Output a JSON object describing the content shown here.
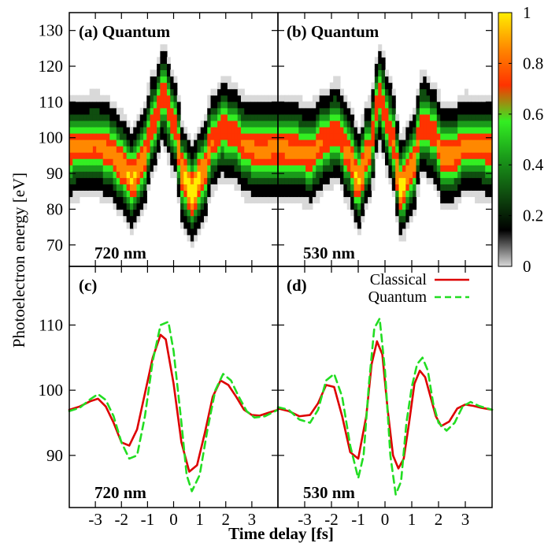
{
  "y_axis_label": "Photoelectron energy [eV]",
  "x_axis_label": "Time delay [fs]",
  "colorbar": {
    "ticks": [
      "1",
      "0.8",
      "0.6",
      "0.4",
      "0.2",
      "0"
    ],
    "tick_values": [
      1,
      0.8,
      0.6,
      0.4,
      0.2,
      0
    ],
    "stops": [
      "#d9d9d9",
      "#000000",
      "#0f4d0f",
      "#1a9a1a",
      "#33ee22",
      "#ff3300",
      "#ff8800",
      "#ffee00"
    ]
  },
  "chart_data": [
    {
      "type": "heatmap",
      "panel_label": "(a) Quantum",
      "wavelength_label": "720 nm",
      "ylim": [
        64,
        135
      ],
      "xlim": [
        -4,
        4
      ],
      "y_ticks": [
        "130",
        "120",
        "110",
        "100",
        "90",
        "80",
        "70"
      ],
      "y_tick_values": [
        130,
        120,
        110,
        100,
        90,
        80,
        70
      ],
      "center_curve": [
        [
          -4,
          97.2
        ],
        [
          -3.5,
          97.6
        ],
        [
          -3,
          98.2
        ],
        [
          -2.5,
          96.5
        ],
        [
          -2,
          92.5
        ],
        [
          -1.6,
          88.5
        ],
        [
          -1.2,
          93
        ],
        [
          -0.8,
          104
        ],
        [
          -0.4,
          112
        ],
        [
          0,
          104
        ],
        [
          0.4,
          89
        ],
        [
          0.7,
          84.5
        ],
        [
          1.1,
          90
        ],
        [
          1.5,
          99
        ],
        [
          1.9,
          102.5
        ],
        [
          2.3,
          101
        ],
        [
          2.8,
          97.5
        ],
        [
          3.3,
          96.5
        ],
        [
          4,
          97
        ]
      ]
    },
    {
      "type": "heatmap",
      "panel_label": "(b) Quantum",
      "wavelength_label": "530 nm",
      "ylim": [
        64,
        135
      ],
      "xlim": [
        -4,
        4
      ],
      "center_curve": [
        [
          -4,
          97.2
        ],
        [
          -3.4,
          96.5
        ],
        [
          -2.8,
          95.5
        ],
        [
          -2.2,
          99.5
        ],
        [
          -1.8,
          102
        ],
        [
          -1.4,
          96
        ],
        [
          -1,
          88
        ],
        [
          -0.6,
          96
        ],
        [
          -0.2,
          111.5
        ],
        [
          0.2,
          102
        ],
        [
          0.6,
          86
        ],
        [
          1,
          92
        ],
        [
          1.4,
          104
        ],
        [
          1.8,
          101
        ],
        [
          2.2,
          95
        ],
        [
          2.6,
          95.5
        ],
        [
          3,
          98
        ],
        [
          3.5,
          97.5
        ],
        [
          4,
          97
        ]
      ]
    },
    {
      "type": "line",
      "panel_label": "(c)",
      "wavelength_label": "720 nm",
      "xlim": [
        -4,
        4
      ],
      "ylim": [
        82,
        119
      ],
      "y_ticks": [
        "110",
        "100",
        "90"
      ],
      "y_tick_values": [
        110,
        100,
        90
      ],
      "x_ticks": [
        "-3",
        "-2",
        "-1",
        "0",
        "1",
        "2",
        "3"
      ],
      "x_tick_values": [
        -3,
        -2,
        -1,
        0,
        1,
        2,
        3
      ],
      "series": [
        {
          "name": "Classical",
          "color": "#dd0000",
          "dash": false,
          "x": [
            -4,
            -3.6,
            -3.2,
            -2.9,
            -2.6,
            -2.3,
            -2.0,
            -1.7,
            -1.4,
            -1.1,
            -0.8,
            -0.5,
            -0.3,
            0.0,
            0.3,
            0.6,
            0.9,
            1.2,
            1.5,
            1.8,
            2.1,
            2.4,
            2.7,
            3.0,
            3.3,
            3.6,
            4.0
          ],
          "y": [
            97,
            97.5,
            98.3,
            98.7,
            97.5,
            95,
            92,
            91.5,
            94,
            99.5,
            105,
            108.5,
            107.8,
            101,
            92,
            87.5,
            88.5,
            93.5,
            99,
            101.5,
            100.8,
            99,
            97,
            96.2,
            96.1,
            96.5,
            97
          ]
        },
        {
          "name": "Quantum",
          "color": "#22dd22",
          "dash": true,
          "x": [
            -4,
            -3.6,
            -3.2,
            -2.9,
            -2.6,
            -2.3,
            -2.0,
            -1.7,
            -1.4,
            -1.1,
            -0.8,
            -0.5,
            -0.2,
            0.0,
            0.3,
            0.5,
            0.7,
            1.0,
            1.3,
            1.6,
            1.9,
            2.2,
            2.5,
            2.8,
            3.1,
            3.5,
            4.0
          ],
          "y": [
            96.8,
            97.3,
            98.6,
            99.4,
            98.5,
            96,
            92,
            89.5,
            90,
            96,
            104.5,
            110,
            110.5,
            106,
            95,
            87,
            84.5,
            87,
            94,
            100,
            102.5,
            101.5,
            99,
            96.8,
            95.8,
            96,
            97
          ]
        }
      ]
    },
    {
      "type": "line",
      "panel_label": "(d)",
      "wavelength_label": "530 nm",
      "xlim": [
        -4,
        4
      ],
      "ylim": [
        82,
        119
      ],
      "x_ticks": [
        "-3",
        "-2",
        "-1",
        "0",
        "1",
        "2",
        "3"
      ],
      "x_tick_values": [
        -3,
        -2,
        -1,
        0,
        1,
        2,
        3
      ],
      "legend": [
        {
          "name": "Classical",
          "color": "#dd0000",
          "dash": false
        },
        {
          "name": "Quantum",
          "color": "#22dd22",
          "dash": true
        }
      ],
      "series": [
        {
          "name": "Classical",
          "color": "#dd0000",
          "dash": false,
          "x": [
            -4,
            -3.6,
            -3.2,
            -2.8,
            -2.5,
            -2.2,
            -1.9,
            -1.6,
            -1.3,
            -1.0,
            -0.7,
            -0.5,
            -0.3,
            -0.1,
            0.1,
            0.3,
            0.5,
            0.7,
            0.9,
            1.1,
            1.3,
            1.5,
            1.7,
            1.9,
            2.1,
            2.4,
            2.7,
            3.0,
            3.3,
            3.6,
            4.0
          ],
          "y": [
            97.2,
            96.8,
            96,
            96.2,
            98,
            100.8,
            100.5,
            96,
            90.5,
            89.5,
            96,
            104,
            107.5,
            105.5,
            97,
            90,
            88,
            89.5,
            95,
            101,
            103,
            102,
            99,
            96,
            94.5,
            95.2,
            97.2,
            97.8,
            97.6,
            97.3,
            97
          ]
        },
        {
          "name": "Quantum",
          "color": "#22dd22",
          "dash": true,
          "x": [
            -4,
            -3.6,
            -3.2,
            -2.8,
            -2.5,
            -2.2,
            -1.9,
            -1.6,
            -1.3,
            -1.0,
            -0.8,
            -0.6,
            -0.4,
            -0.2,
            0.0,
            0.2,
            0.4,
            0.6,
            0.8,
            1.0,
            1.2,
            1.4,
            1.6,
            1.8,
            2.0,
            2.3,
            2.6,
            2.9,
            3.2,
            3.5,
            4.0
          ],
          "y": [
            97.4,
            97,
            95.5,
            95,
            97,
            101.5,
            102.5,
            99,
            91.5,
            86.5,
            90,
            101,
            109.5,
            111,
            103,
            90,
            84,
            86,
            95,
            100.5,
            104,
            105,
            103,
            98,
            95,
            93.8,
            95,
            97.5,
            98.2,
            97.6,
            97
          ]
        }
      ]
    }
  ]
}
